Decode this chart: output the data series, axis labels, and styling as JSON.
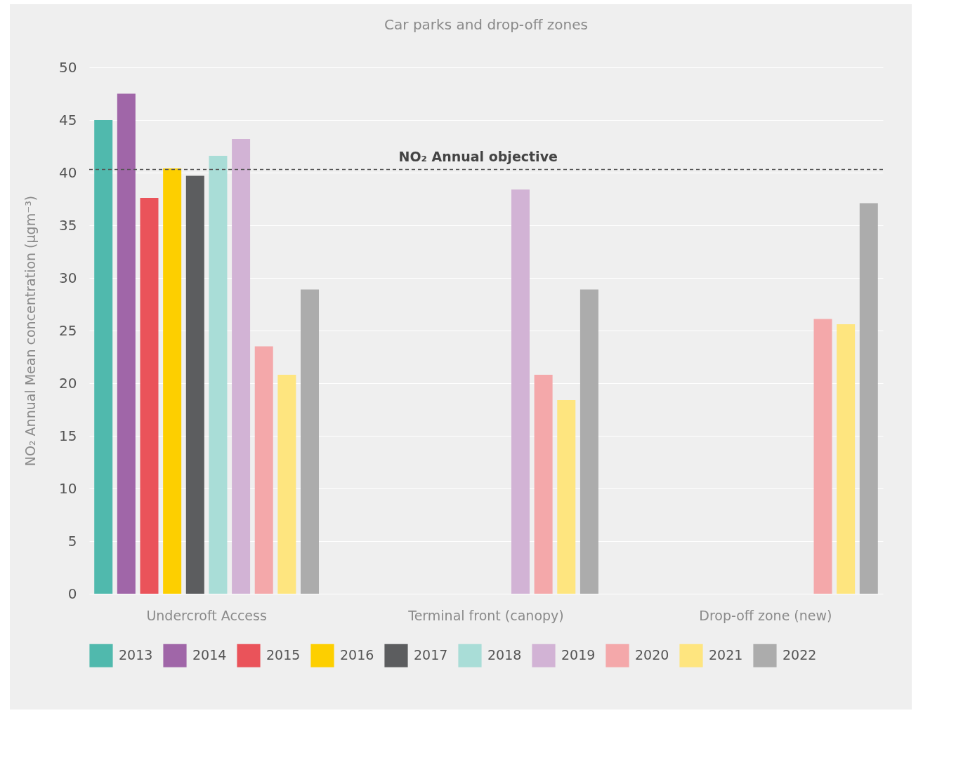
{
  "chart_data": {
    "type": "bar",
    "title": "Car parks and drop-off zones",
    "categories": [
      "Undercroft Access",
      "Terminal front (canopy)",
      "Drop-off zone (new)"
    ],
    "series": [
      {
        "name": "2013",
        "color": "#50b9ad",
        "values": [
          45,
          null,
          null
        ]
      },
      {
        "name": "2014",
        "color": "#a066a8",
        "values": [
          47.5,
          null,
          null
        ]
      },
      {
        "name": "2015",
        "color": "#ea535a",
        "values": [
          37.6,
          null,
          null
        ]
      },
      {
        "name": "2016",
        "color": "#fdcf00",
        "values": [
          40.4,
          null,
          null
        ]
      },
      {
        "name": "2017",
        "color": "#5c5d5f",
        "values": [
          39.7,
          null,
          null
        ]
      },
      {
        "name": "2018",
        "color": "#a9ddd7",
        "values": [
          41.6,
          null,
          null
        ]
      },
      {
        "name": "2019",
        "color": "#d2b3d5",
        "values": [
          43.2,
          38.4,
          null
        ]
      },
      {
        "name": "2020",
        "color": "#f4a8aa",
        "values": [
          23.5,
          20.8,
          26.1
        ]
      },
      {
        "name": "2021",
        "color": "#fee57f",
        "values": [
          20.8,
          18.4,
          25.6
        ]
      },
      {
        "name": "2022",
        "color": "#acacac",
        "values": [
          28.9,
          28.9,
          37.1
        ]
      }
    ],
    "ylabel": "NO₂ Annual Mean concentration (μgm⁻³)",
    "ylim": [
      0,
      50
    ],
    "yticks": [
      0,
      5,
      10,
      15,
      20,
      25,
      30,
      35,
      40,
      45,
      50
    ],
    "ref_lines": [
      {
        "axis": "y",
        "value": 40.3,
        "label": "NO₂ Annual objective",
        "color": "#555555",
        "line_style": "dashed"
      }
    ],
    "grid": "y",
    "legend": "bottom"
  }
}
